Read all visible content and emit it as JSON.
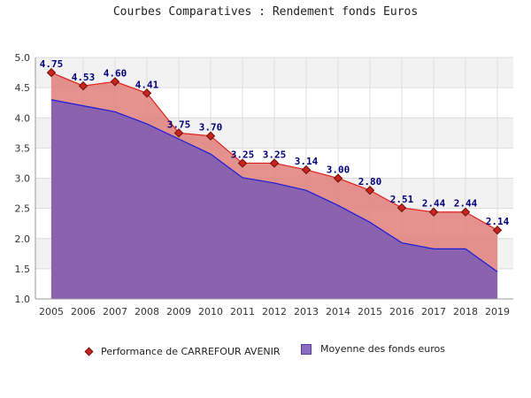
{
  "chart_data": {
    "type": "area",
    "title": "Courbes Comparatives : Rendement fonds Euros",
    "categories": [
      "2005",
      "2006",
      "2007",
      "2008",
      "2009",
      "2010",
      "2011",
      "2012",
      "2013",
      "2014",
      "2015",
      "2016",
      "2017",
      "2018",
      "2019"
    ],
    "series": [
      {
        "name": "Performance de CARREFOUR AVENIR",
        "values": [
          4.75,
          4.53,
          4.6,
          4.41,
          3.75,
          3.7,
          3.25,
          3.25,
          3.14,
          3.0,
          2.8,
          2.51,
          2.44,
          2.44,
          2.14
        ],
        "labels": [
          "4.75",
          "4.53",
          "4.60",
          "4.41",
          "3.75",
          "3.70",
          "3.25",
          "3.25",
          "3.14",
          "3.00",
          "2.80",
          "2.51",
          "2.44",
          "2.44",
          "2.14"
        ],
        "line_color": "#e0201a",
        "fill_color": "#e07f7a",
        "marker_color": "#c8241c"
      },
      {
        "name": "Moyenne des fonds euros",
        "values": [
          4.3,
          4.2,
          4.1,
          3.9,
          3.65,
          3.4,
          3.01,
          2.92,
          2.8,
          2.55,
          2.27,
          1.93,
          1.83,
          1.83,
          1.45
        ],
        "line_color": "#1a1adc",
        "fill_color": "#8560b0"
      }
    ],
    "y_ticks": [
      "1.0",
      "1.5",
      "2.0",
      "2.5",
      "3.0",
      "3.5",
      "4.0",
      "4.5",
      "5.0"
    ],
    "ylim": [
      1.0,
      5.0
    ],
    "grid": true,
    "legend_position": "bottom"
  }
}
